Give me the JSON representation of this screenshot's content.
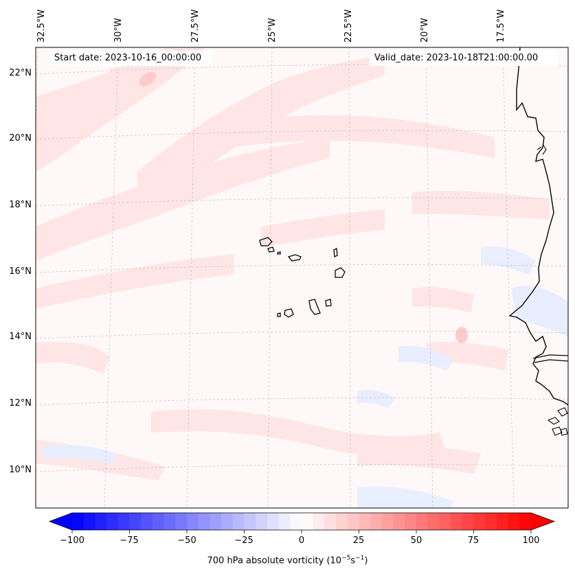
{
  "map": {
    "start_date": "Start date: 2023-10-16_00:00:00",
    "valid_date": "Valid_date: 2023-10-18T21:00:00.00",
    "lon_labels": [
      "32.5°W",
      "30°W",
      "27.5°W",
      "25°W",
      "22.5°W",
      "20°W",
      "17.5°W"
    ],
    "lat_labels": [
      "22°N",
      "20°N",
      "18°N",
      "16°N",
      "14°N",
      "12°N",
      "10°N"
    ],
    "gridlines": "dashed",
    "field_colors": {
      "positive": "#ffe0e0",
      "negative": "#e6ecff",
      "background": "#fff8f8"
    }
  },
  "colorbar": {
    "title_prefix": "700 hPa absolute vorticity (10",
    "title_exp1": "−5",
    "title_mid": "s",
    "title_exp2": "−1",
    "title_suffix": ")",
    "ticks": [
      "−100",
      "−75",
      "−50",
      "−25",
      "0",
      "25",
      "50",
      "75",
      "100"
    ],
    "range": [
      -100,
      100
    ],
    "step": 5,
    "extend": "both",
    "cmap": "bwr",
    "min_color": "#0000ff",
    "max_color": "#ff0000"
  }
}
